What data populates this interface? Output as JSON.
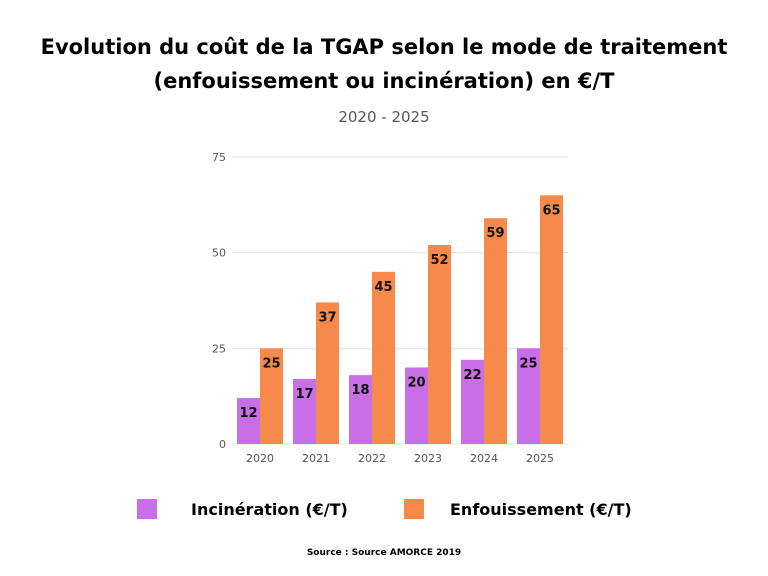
{
  "header": {
    "title_line1": "Evolution du coût de la TGAP selon le mode de traitement",
    "title_line2": "(enfouissement ou incinération) en €/T",
    "subtitle": "2020 - 2025"
  },
  "footer": {
    "source": "Source : Source AMORCE 2019"
  },
  "colors": {
    "incineration": "#c86ee6",
    "enfouissement": "#f78a4a",
    "grid": "#e2e2e2",
    "axis_text": "#555555"
  },
  "chart_data": {
    "type": "bar",
    "categories": [
      "2020",
      "2021",
      "2022",
      "2023",
      "2024",
      "2025"
    ],
    "series": [
      {
        "name": "Incinération (€/T)",
        "values": [
          12,
          17,
          18,
          20,
          22,
          25
        ]
      },
      {
        "name": "Enfouissement (€/T)",
        "values": [
          25,
          37,
          45,
          52,
          59,
          65
        ]
      }
    ],
    "ylim": [
      0,
      75
    ],
    "yticks": [
      0,
      25,
      50,
      75
    ],
    "grid": true,
    "legend_position": "bottom"
  }
}
